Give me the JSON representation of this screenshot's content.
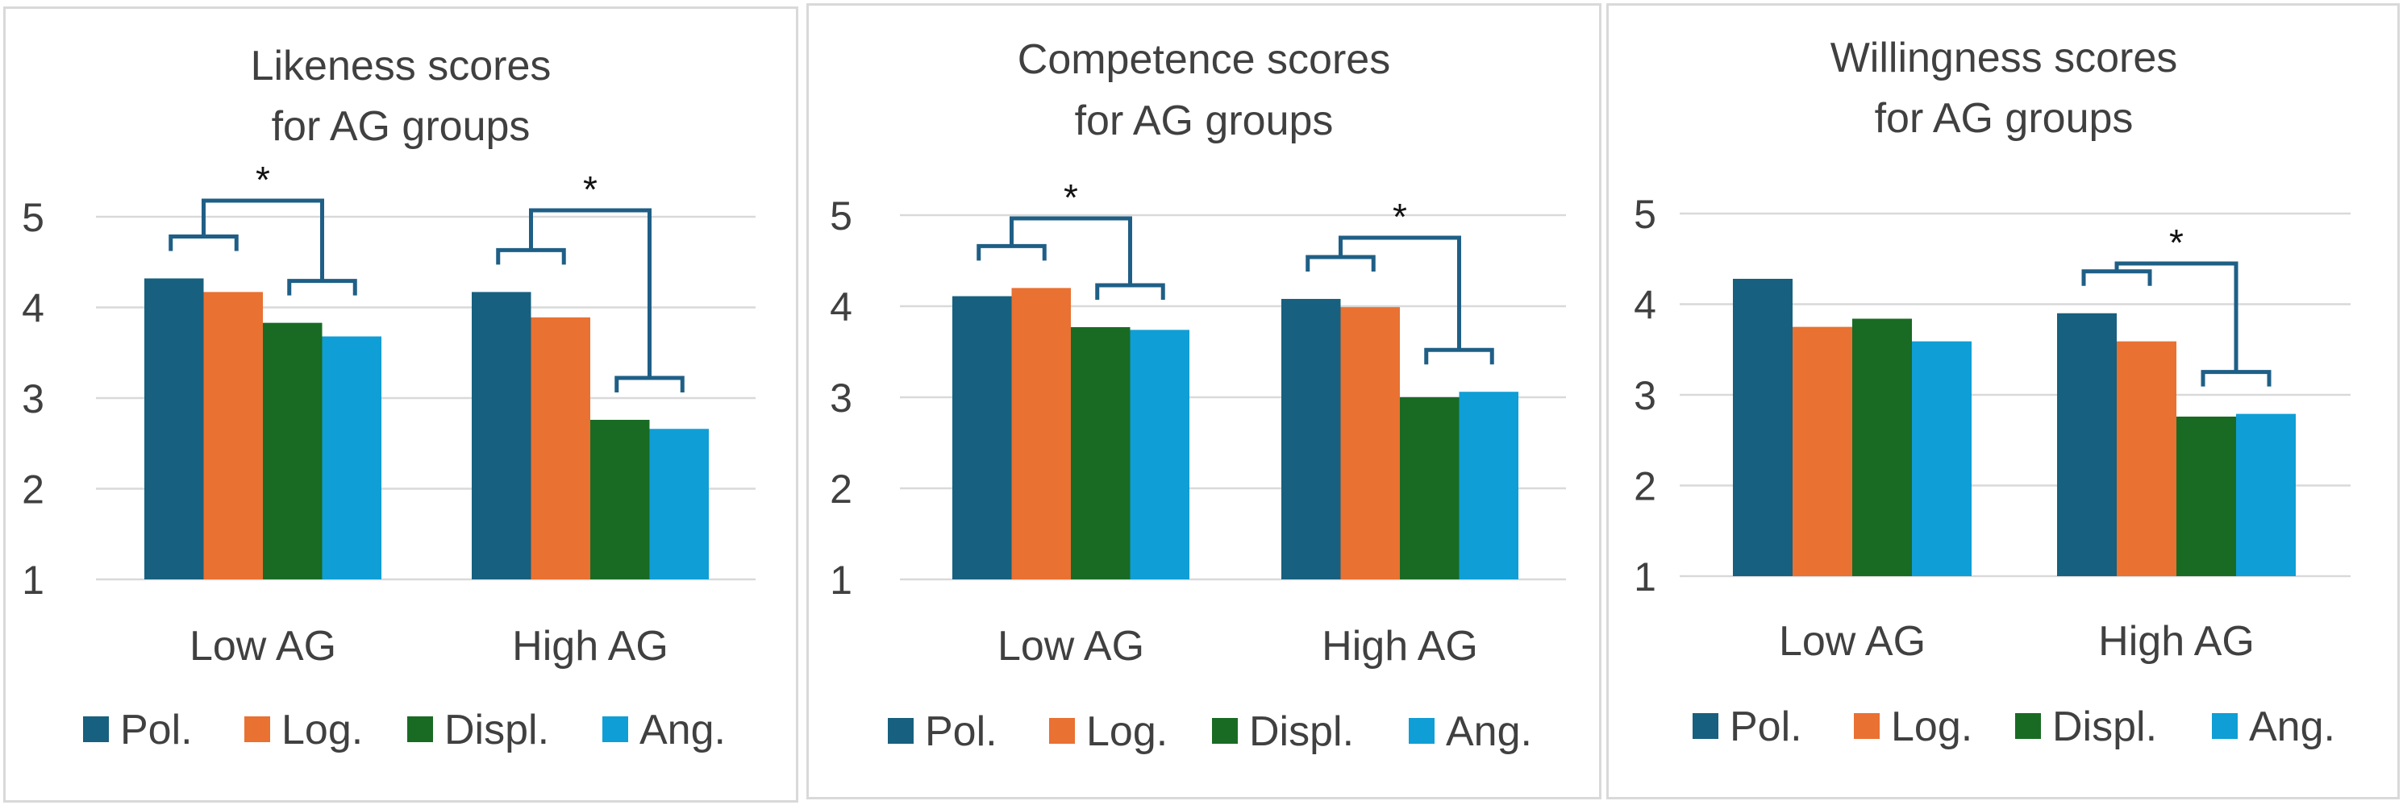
{
  "legend_labels": [
    "Pol.",
    "Log.",
    "Displ.",
    "Ang."
  ],
  "colors": [
    "#17607f",
    "#e97132",
    "#196b24",
    "#0f9ed5"
  ],
  "chart_data": [
    {
      "type": "bar",
      "title_lines": [
        "Likeness scores",
        "for AG groups"
      ],
      "categories": [
        "Low AG",
        "High AG"
      ],
      "series": [
        {
          "name": "Pol.",
          "values": [
            4.32,
            4.17
          ]
        },
        {
          "name": "Log.",
          "values": [
            4.17,
            3.89
          ]
        },
        {
          "name": "Displ.",
          "values": [
            3.83,
            2.76
          ]
        },
        {
          "name": "Ang.",
          "values": [
            3.68,
            2.66
          ]
        }
      ],
      "ylim": [
        1,
        5
      ],
      "yticks": [
        "1",
        "2",
        "3",
        "4",
        "5"
      ],
      "grid": true,
      "legend": "bottom",
      "annotations": [
        {
          "group": "Low AG",
          "label": "*"
        },
        {
          "group": "High AG",
          "label": "*"
        }
      ]
    },
    {
      "type": "bar",
      "title_lines": [
        "Competence scores",
        "for AG groups"
      ],
      "categories": [
        "Low AG",
        "High AG"
      ],
      "series": [
        {
          "name": "Pol.",
          "values": [
            4.11,
            4.08
          ]
        },
        {
          "name": "Log.",
          "values": [
            4.2,
            3.99
          ]
        },
        {
          "name": "Displ.",
          "values": [
            3.77,
            3.0
          ]
        },
        {
          "name": "Ang.",
          "values": [
            3.74,
            3.06
          ]
        }
      ],
      "ylim": [
        1,
        5
      ],
      "yticks": [
        "1",
        "2",
        "3",
        "4",
        "5"
      ],
      "grid": true,
      "legend": "bottom",
      "annotations": [
        {
          "group": "Low AG",
          "label": "*"
        },
        {
          "group": "High AG",
          "label": "*"
        }
      ]
    },
    {
      "type": "bar",
      "title_lines": [
        "Willingness scores",
        "for AG groups"
      ],
      "categories": [
        "Low AG",
        "High AG"
      ],
      "series": [
        {
          "name": "Pol.",
          "values": [
            4.28,
            3.9
          ]
        },
        {
          "name": "Log.",
          "values": [
            3.75,
            3.59
          ]
        },
        {
          "name": "Displ.",
          "values": [
            3.84,
            2.76
          ]
        },
        {
          "name": "Ang.",
          "values": [
            3.59,
            2.79
          ]
        }
      ],
      "ylim": [
        1,
        5
      ],
      "yticks": [
        "1",
        "2",
        "3",
        "4",
        "5"
      ],
      "grid": true,
      "legend": "bottom",
      "annotations": [
        {
          "group": "High AG",
          "label": "*"
        }
      ]
    }
  ]
}
